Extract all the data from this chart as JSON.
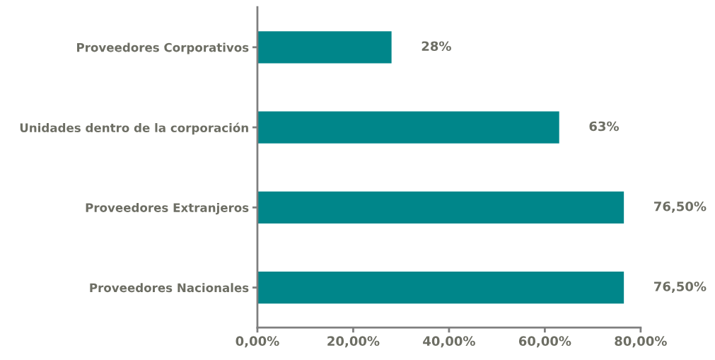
{
  "chart_data": {
    "type": "bar",
    "orientation": "horizontal",
    "categories": [
      "Proveedores Corporativos",
      "Unidades dentro de la corporación",
      "Proveedores Extranjeros",
      "Proveedores Nacionales"
    ],
    "values": [
      28,
      63,
      76.5,
      76.5
    ],
    "value_labels": [
      "28%",
      "63%",
      "76,50%",
      "76,50%"
    ],
    "color": "#00868a",
    "xlim": [
      0,
      80
    ],
    "xticks": [
      {
        "value": 0,
        "label": "0,00%"
      },
      {
        "value": 20,
        "label": "20,00%"
      },
      {
        "value": 40,
        "label": "40,00%"
      },
      {
        "value": 60,
        "label": "60,00%"
      },
      {
        "value": 80,
        "label": "80,00%"
      }
    ],
    "grid": false,
    "legend": false
  }
}
